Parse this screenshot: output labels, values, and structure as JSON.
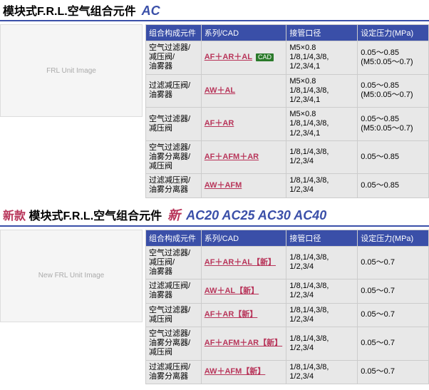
{
  "section1": {
    "title": "模块式F.R.L.空气组合元件",
    "model_italic": "AC",
    "image_alt": "FRL Unit Image",
    "headers": [
      "组合构成元件",
      "系列/CAD",
      "接管口径",
      "设定压力(MPa)"
    ],
    "rows": [
      {
        "comp": "空气过滤器/\n减压阀/\n油雾器",
        "series": "AF＋AR＋AL",
        "cad": true,
        "port": "M5×0.8\n1/8,1/4,3/8,\n1/2,3/4,1",
        "press": "0.05～0.85\n(M5:0.05～0.7)"
      },
      {
        "comp": "过滤减压阀/\n油雾器",
        "series": "AW＋AL",
        "cad": false,
        "port": "M5×0.8\n1/8,1/4,3/8,\n1/2,3/4,1",
        "press": "0.05～0.85\n(M5:0.05～0.7)"
      },
      {
        "comp": "空气过滤器/\n减压阀",
        "series": "AF＋AR",
        "cad": false,
        "port": "M5×0.8\n1/8,1/4,3/8,\n1/2,3/4,1",
        "press": "0.05～0.85\n(M5:0.05～0.7)"
      },
      {
        "comp": "空气过滤器/\n油雾分离器/\n减压阀",
        "series": "AF＋AFM＋AR",
        "cad": false,
        "port": "1/8,1/4,3/8,\n1/2,3/4",
        "press": "0.05～0.85"
      },
      {
        "comp": "过滤减压阀/\n油雾分离器",
        "series": "AW＋AFM",
        "cad": false,
        "port": "1/8,1/4,3/8,\n1/2,3/4",
        "press": "0.05～0.85"
      }
    ]
  },
  "section2": {
    "title_prefix": "新款",
    "title": "模块式F.R.L.空气组合元件",
    "model_new": "新",
    "models": "AC20 AC25 AC30 AC40",
    "image_alt": "New FRL Unit Image",
    "headers": [
      "组合构成元件",
      "系列/CAD",
      "接管口径",
      "设定压力(MPa)"
    ],
    "rows": [
      {
        "comp": "空气过滤器/\n减压阀/\n油雾器",
        "series": "AF＋AR＋AL【新】",
        "port": "1/8,1/4,3/8,\n1/2,3/4",
        "press": "0.05～0.7"
      },
      {
        "comp": "过滤减压阀/\n油雾器",
        "series": "AW＋AL【新】",
        "port": "1/8,1/4,3/8,\n1/2,3/4",
        "press": "0.05～0.7"
      },
      {
        "comp": "空气过滤器/\n减压阀",
        "series": "AF＋AR【新】",
        "port": "1/8,1/4,3/8,\n1/2,3/4",
        "press": "0.05～0.7"
      },
      {
        "comp": "空气过滤器/\n油雾分离器/\n减压阀",
        "series": "AF＋AFM＋AR【新】",
        "port": "1/8,1/4,3/8,\n1/2,3/4",
        "press": "0.05～0.7"
      },
      {
        "comp": "过滤减压阀/\n油雾分离器",
        "series": "AW＋AFM【新】",
        "port": "1/8,1/4,3/8,\n1/2,3/4",
        "press": "0.05～0.7"
      }
    ]
  },
  "cad_label": "CAD"
}
